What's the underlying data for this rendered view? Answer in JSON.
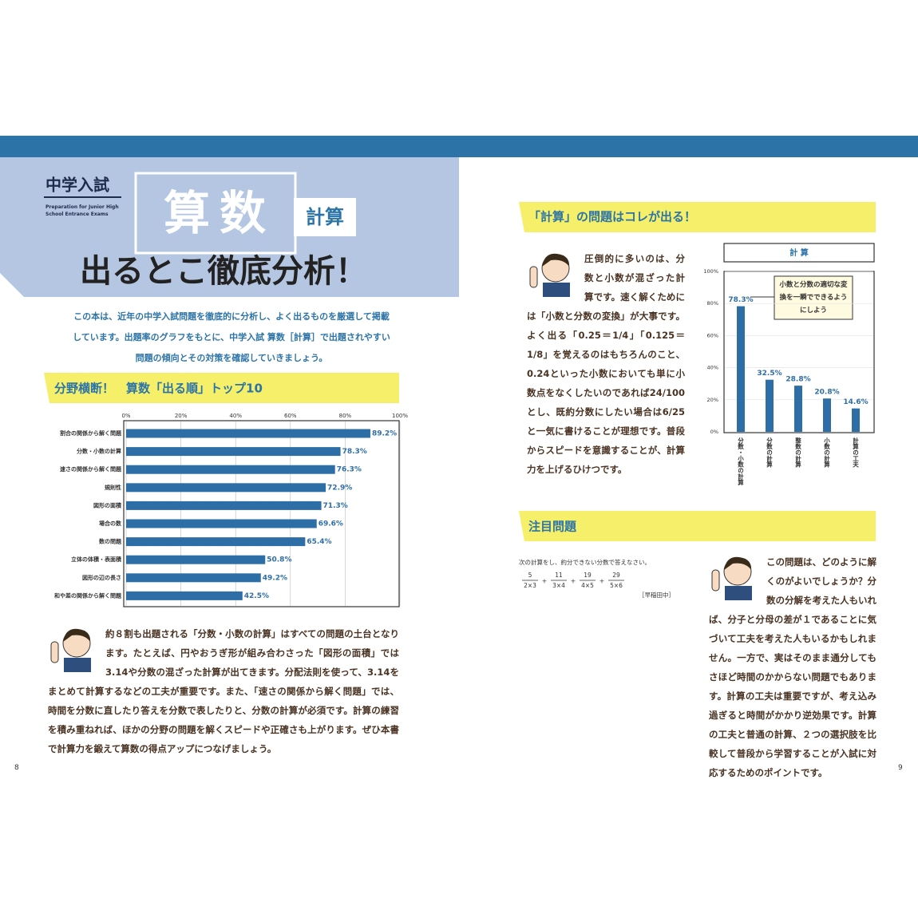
{
  "left_page": {
    "series_label": "中学入試",
    "series_subtitle": "Preparation for Junior High School Entrance Exams",
    "subject": "算数",
    "topic": "計算",
    "title": "出るとこ徹底分析！",
    "intro": "この本は、近年の中学入試問題を徹底的に分析し、よく出るものを厳選して掲載しています。出題率のグラフをもとに、中学入試 算数［計算］で出題されやすい問題の傾向とその対策を確認していきましょう。",
    "section_heading": "分野横断！　算数「出る順」トップ10",
    "commentary": "約８割も出題される「分数・小数の計算」はすべての問題の土台となります。たとえば、円やおうぎ形が組み合わさった「図形の面積」では3.14や分数の混ざった計算が出てきます。分配法則を使って、3.14をまとめて計算するなどの工夫が重要です。また、「速さの関係から解く問題」では、時間を分数に直したり答えを分数で表したりと、分数の計算が必須です。計算の練習を積み重ねれば、ほかの分野の問題を解くスピードや正確さも上がります。ぜひ本書で計算力を鍛えて算数の得点アップにつなげましょう。",
    "page_number": "8"
  },
  "right_page": {
    "section_heading": "「計算」の問題はコレが出る！",
    "commentary": "圧倒的に多いのは、分数と小数が混ざった計算です。速く解くためには「小数と分数の変換」が大事です。よく出る「0.25＝1/4」「0.125＝1/8」を覚えるのはもちろんのこと、0.24といった小数においても単に小数点をなくしたいのであれば24/100とし、既約分数にしたい場合は6/25と一気に書けることが理想です。普段からスピードを意識することが、計算力を上げるひけつです。",
    "featured_heading": "注目問題",
    "problem": {
      "instruction": "次の計算をし、約分できない分数で答えなさい。",
      "terms": [
        {
          "numerator": "5",
          "denominator": "2×3"
        },
        {
          "numerator": "11",
          "denominator": "3×4"
        },
        {
          "numerator": "19",
          "denominator": "4×5"
        },
        {
          "numerator": "29",
          "denominator": "5×6"
        }
      ],
      "operators": [
        "+",
        "+",
        "+"
      ],
      "source": "［早稲田中］"
    },
    "featured_commentary": "この問題は、どのように解くのがよいでしょうか？分数の分解を考えた人もいれば、分子と分母の差が１であることに気づいて工夫を考えた人もいるかもしれません。一方で、実はそのまま通分してもさほど時間のかからない問題でもあります。計算の工夫は重要ですが、考え込み過ぎると時間がかかり逆効果です。計算の工夫と普通の計算、２つの選択肢を比較して普段から学習することが入試に対応するためのポイントです。",
    "page_number": "9"
  },
  "chart_data": [
    {
      "type": "hbar",
      "categories": [
        "割合の関係から解く問題",
        "分数・小数の計算",
        "速さの関係から解く問題",
        "規則性",
        "図形の面積",
        "場合の数",
        "数の問題",
        "立体の体積・表面積",
        "図形の辺の長さ",
        "和や差の関係から解く問題"
      ],
      "values": [
        89.2,
        78.3,
        76.3,
        72.9,
        71.3,
        69.6,
        65.4,
        50.8,
        49.2,
        42.5
      ],
      "value_labels": [
        "89.2%",
        "78.3%",
        "76.3%",
        "72.9%",
        "71.3%",
        "69.6%",
        "65.4%",
        "50.8%",
        "49.2%",
        "42.5%"
      ],
      "color": "#2e6ea6",
      "xlim": [
        0,
        100
      ],
      "xticks": [
        {
          "value": 0,
          "label": "0%"
        },
        {
          "value": 20,
          "label": "20%"
        },
        {
          "value": 40,
          "label": "40%"
        },
        {
          "value": 60,
          "label": "60%"
        },
        {
          "value": 80,
          "label": "80%"
        },
        {
          "value": 100,
          "label": "100%"
        }
      ],
      "grid": true
    },
    {
      "type": "bar",
      "title": "計 算",
      "categories": [
        "分数・小数の計算",
        "分数の計算",
        "整数の計算",
        "小数の計算",
        "計算の工夫"
      ],
      "values": [
        78.3,
        32.5,
        28.8,
        20.8,
        14.6
      ],
      "value_labels": [
        "78.3%",
        "32.5%",
        "28.8%",
        "20.8%",
        "14.6%"
      ],
      "color": "#2e6ea6",
      "ylim": [
        0,
        100
      ],
      "yticks": [
        {
          "value": 0,
          "label": "0%"
        },
        {
          "value": 20,
          "label": "20%"
        },
        {
          "value": 40,
          "label": "40%"
        },
        {
          "value": 60,
          "label": "60%"
        },
        {
          "value": 80,
          "label": "80%"
        },
        {
          "value": 100,
          "label": "100%"
        }
      ],
      "grid": true,
      "annotation": "小数と分数の適切な変換を一瞬でできるようにしよう"
    }
  ]
}
